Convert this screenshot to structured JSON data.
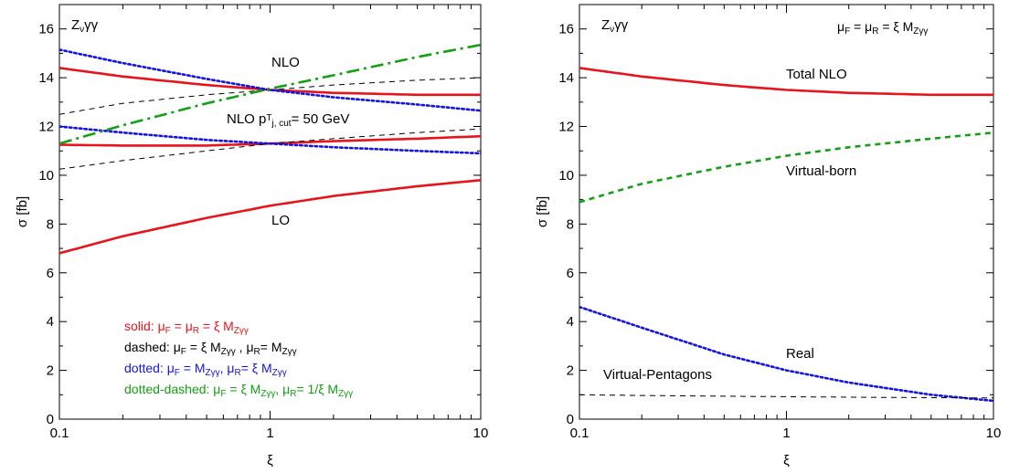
{
  "chart_data": [
    {
      "type": "line",
      "title": "",
      "xlabel": "ξ",
      "ylabel": "σ [fb]",
      "xscale": "log",
      "xlim": [
        0.1,
        10
      ],
      "ylim": [
        0,
        17
      ],
      "xticks": [
        "0.1",
        "1",
        "10"
      ],
      "yticks": [
        "0",
        "2",
        "4",
        "6",
        "8",
        "10",
        "12",
        "14",
        "16"
      ],
      "legend_placement": "bottom-left",
      "annotations": {
        "process": "Z",
        "process_sub": "ν",
        "process_tail": "γγ",
        "nlo": "NLO",
        "nlo_cut": "NLO p",
        "nlo_cut_sup": "T",
        "nlo_cut_sub": "j, cut",
        "nlo_cut_tail": "= 50 GeV",
        "lo": "LO"
      },
      "legend": [
        {
          "text": "solid: μ_F = μ_R = ξ  M_Zγγ",
          "color": "#e8141c",
          "style": "solid"
        },
        {
          "text": "dashed: μ_F = ξ  M_Zγγ , μ_R= M_Zγγ",
          "color": "#000000",
          "style": "dashed"
        },
        {
          "text": "dotted: μ_F = M_Zγγ, μ_R= ξ  M_Zγγ",
          "color": "#1414e0",
          "style": "dotted"
        },
        {
          "text": "dotted-dashed: μ_F = ξ M_Zγγ, μ_R= 1/ξ  M_Zγγ",
          "color": "#14a014",
          "style": "dashdot"
        }
      ],
      "series": [
        {
          "color": "#e8141c",
          "style": "solid",
          "width": 2.6,
          "x": [
            0.1,
            0.2,
            0.5,
            1,
            2,
            5,
            10
          ],
          "y": [
            14.4,
            14.05,
            13.7,
            13.5,
            13.38,
            13.3,
            13.3
          ]
        },
        {
          "color": "#e8141c",
          "style": "solid",
          "width": 2.6,
          "x": [
            0.1,
            0.2,
            0.5,
            1,
            2,
            5,
            10
          ],
          "y": [
            11.25,
            11.22,
            11.22,
            11.3,
            11.4,
            11.5,
            11.6
          ]
        },
        {
          "color": "#e8141c",
          "style": "solid",
          "width": 2.6,
          "x": [
            0.1,
            0.2,
            0.5,
            1,
            2,
            5,
            10
          ],
          "y": [
            6.8,
            7.5,
            8.25,
            8.75,
            9.15,
            9.55,
            9.8
          ]
        },
        {
          "color": "#000000",
          "style": "dashed",
          "width": 1,
          "x": [
            0.1,
            0.2,
            0.5,
            1,
            2,
            5,
            10
          ],
          "y": [
            12.5,
            12.95,
            13.3,
            13.5,
            13.7,
            13.9,
            14.0
          ]
        },
        {
          "color": "#000000",
          "style": "dashed",
          "width": 1,
          "x": [
            0.1,
            0.2,
            0.5,
            1,
            2,
            5,
            10
          ],
          "y": [
            10.25,
            10.6,
            11.0,
            11.3,
            11.5,
            11.75,
            11.9
          ]
        },
        {
          "color": "#1414e0",
          "style": "dotted",
          "width": 2.6,
          "x": [
            0.1,
            0.2,
            0.5,
            1,
            2,
            5,
            10
          ],
          "y": [
            15.15,
            14.6,
            13.95,
            13.5,
            13.2,
            12.9,
            12.65
          ]
        },
        {
          "color": "#1414e0",
          "style": "dotted",
          "width": 2.6,
          "x": [
            0.1,
            0.2,
            0.5,
            1,
            2,
            5,
            10
          ],
          "y": [
            12.0,
            11.75,
            11.45,
            11.3,
            11.15,
            11.0,
            10.9
          ]
        },
        {
          "color": "#14a014",
          "style": "dashdot",
          "width": 2.6,
          "x": [
            0.1,
            0.2,
            0.5,
            1,
            2,
            5,
            10
          ],
          "y": [
            11.3,
            12.05,
            12.95,
            13.55,
            14.1,
            14.85,
            15.35
          ]
        }
      ]
    },
    {
      "type": "line",
      "title": "",
      "xlabel": "ξ",
      "ylabel": "σ [fb]",
      "xscale": "log",
      "xlim": [
        0.1,
        10
      ],
      "ylim": [
        0,
        17
      ],
      "xticks": [
        "0.1",
        "1",
        "10"
      ],
      "yticks": [
        "0",
        "2",
        "4",
        "6",
        "8",
        "10",
        "12",
        "14",
        "16"
      ],
      "annotations": {
        "process": "Z",
        "process_sub": "ν",
        "process_tail": "γγ",
        "scale": "μ",
        "scale_sub1": "F",
        "scale_mid": " = μ",
        "scale_sub2": "R",
        "scale_tail": " = ξ  M",
        "scale_sub3": "Zγγ"
      },
      "series": [
        {
          "name": "Total NLO",
          "color": "#e8141c",
          "style": "solid",
          "width": 2.6,
          "x": [
            0.1,
            0.2,
            0.5,
            1,
            2,
            5,
            10
          ],
          "y": [
            14.4,
            14.05,
            13.7,
            13.5,
            13.38,
            13.3,
            13.3
          ]
        },
        {
          "name": "Virtual-born",
          "color": "#14a014",
          "style": "dashed",
          "width": 2.6,
          "x": [
            0.1,
            0.2,
            0.5,
            1,
            2,
            5,
            10
          ],
          "y": [
            8.9,
            9.65,
            10.35,
            10.8,
            11.15,
            11.5,
            11.75
          ]
        },
        {
          "name": "Real",
          "color": "#1414e0",
          "style": "dotted",
          "width": 2.6,
          "x": [
            0.1,
            0.2,
            0.5,
            1,
            2,
            5,
            10
          ],
          "y": [
            4.6,
            3.75,
            2.65,
            2.0,
            1.5,
            1.0,
            0.75
          ]
        },
        {
          "name": "Virtual-Pentagons",
          "color": "#000000",
          "style": "dashed",
          "width": 1,
          "x": [
            0.1,
            0.2,
            0.5,
            1,
            2,
            5,
            10
          ],
          "y": [
            1.0,
            0.97,
            0.94,
            0.92,
            0.9,
            0.88,
            0.87
          ]
        }
      ]
    }
  ]
}
